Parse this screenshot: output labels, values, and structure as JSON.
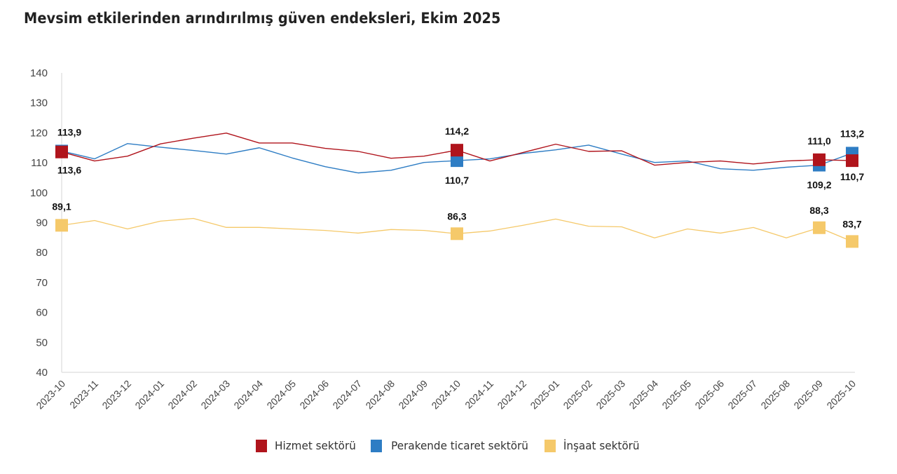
{
  "chart_data": {
    "type": "line",
    "title": "Mevsim etkilerinden arındırılmış güven endeksleri, Ekim 2025",
    "xlabel": "",
    "ylabel": "",
    "ylim": [
      40,
      140
    ],
    "yticks": [
      40,
      50,
      60,
      70,
      80,
      90,
      100,
      110,
      120,
      130,
      140
    ],
    "grid": false,
    "legend_position": "bottom",
    "categories": [
      "2023-10",
      "2023-11",
      "2023-12",
      "2024-01",
      "2024-02",
      "2024-03",
      "2024-04",
      "2024-05",
      "2024-06",
      "2024-07",
      "2024-08",
      "2024-09",
      "2024-10",
      "2024-11",
      "2024-12",
      "2025-01",
      "2025-02",
      "2025-03",
      "2025-04",
      "2025-05",
      "2025-06",
      "2025-07",
      "2025-08",
      "2025-09",
      "2025-10"
    ],
    "series": [
      {
        "name": "Hizmet sektörü",
        "color": "#B0141C",
        "values": [
          113.6,
          110.6,
          112.2,
          116.3,
          118.2,
          119.9,
          116.6,
          116.6,
          114.8,
          113.8,
          111.5,
          112.2,
          114.2,
          110.6,
          113.4,
          116.2,
          113.8,
          114.0,
          109.2,
          110.1,
          110.6,
          109.6,
          110.6,
          111.0,
          110.7
        ],
        "labels": {
          "0": "113,6",
          "12": "114,2",
          "23": "111,0",
          "24": "110,7"
        },
        "label_pos": {
          "0": "below",
          "12": "above",
          "23": "above",
          "24": "below"
        }
      },
      {
        "name": "Perakende ticaret sektörü",
        "color": "#2E7DC4",
        "values": [
          113.9,
          111.3,
          116.4,
          115.2,
          114.1,
          112.9,
          115.0,
          111.6,
          108.7,
          106.6,
          107.5,
          110.1,
          110.7,
          111.3,
          113.1,
          114.3,
          115.9,
          112.9,
          110.1,
          110.6,
          108.0,
          107.5,
          108.5,
          109.2,
          113.2
        ],
        "labels": {
          "0": "113,9",
          "12": "110,7",
          "23": "109,2",
          "24": "113,2"
        },
        "label_pos": {
          "0": "above",
          "12": "below",
          "23": "below",
          "24": "above"
        }
      },
      {
        "name": "İnşaat sektörü",
        "color": "#F5C96A",
        "values": [
          89.1,
          90.7,
          87.9,
          90.5,
          91.4,
          88.4,
          88.4,
          87.9,
          87.4,
          86.5,
          87.7,
          87.4,
          86.3,
          87.2,
          89.1,
          91.2,
          88.8,
          88.6,
          84.9,
          87.9,
          86.5,
          88.4,
          84.9,
          88.3,
          83.7
        ],
        "labels": {
          "0": "89,1",
          "12": "86,3",
          "23": "88,3",
          "24": "83,7"
        },
        "label_pos": {
          "0": "above",
          "12": "above",
          "23": "above",
          "24": "above"
        }
      }
    ]
  }
}
